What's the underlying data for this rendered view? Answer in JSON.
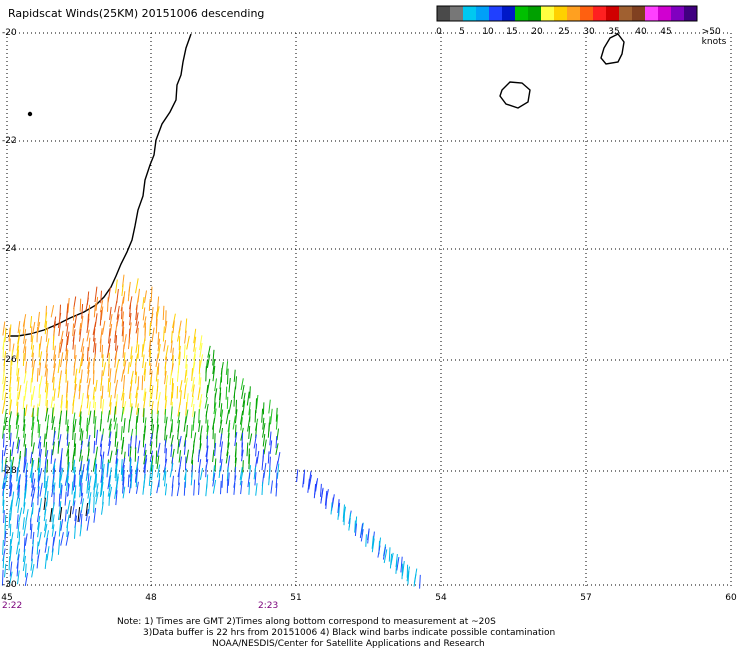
{
  "title": "Rapidscat Winds(25KM) 20151006 descending",
  "lat_labels": [
    "-20",
    "-22",
    "-24",
    "-26",
    "-28",
    "-30"
  ],
  "lon_labels": [
    "45",
    "48",
    "51",
    "54",
    "57",
    "60"
  ],
  "time_labels": [
    "2:22",
    "2:23"
  ],
  "scale": {
    "labels": [
      "0",
      "5",
      "10",
      "15",
      "20",
      "25",
      "30",
      "35",
      "40",
      "45",
      ">50 knots"
    ],
    "colors": [
      "#4a4a4a",
      "#777777",
      "#00c8f0",
      "#00a0f8",
      "#2040ff",
      "#0018c8",
      "#00c000",
      "#00a000",
      "#ffff40",
      "#ffd000",
      "#ffa020",
      "#ff6010",
      "#ff2020",
      "#d00000",
      "#a06030",
      "#804020",
      "#ff40ff",
      "#d000d0",
      "#8000c0",
      "#400080"
    ]
  },
  "notes": {
    "line1": "Note: 1) Times are GMT 2)Times along bottom correspond to measurement at ~20S",
    "line2": "3)Data buffer is 22 hrs from 20151006 4) Black wind barbs indicate possible contamination",
    "line3": "NOAA/NESDIS/Center for Satellite Applications and Research"
  }
}
